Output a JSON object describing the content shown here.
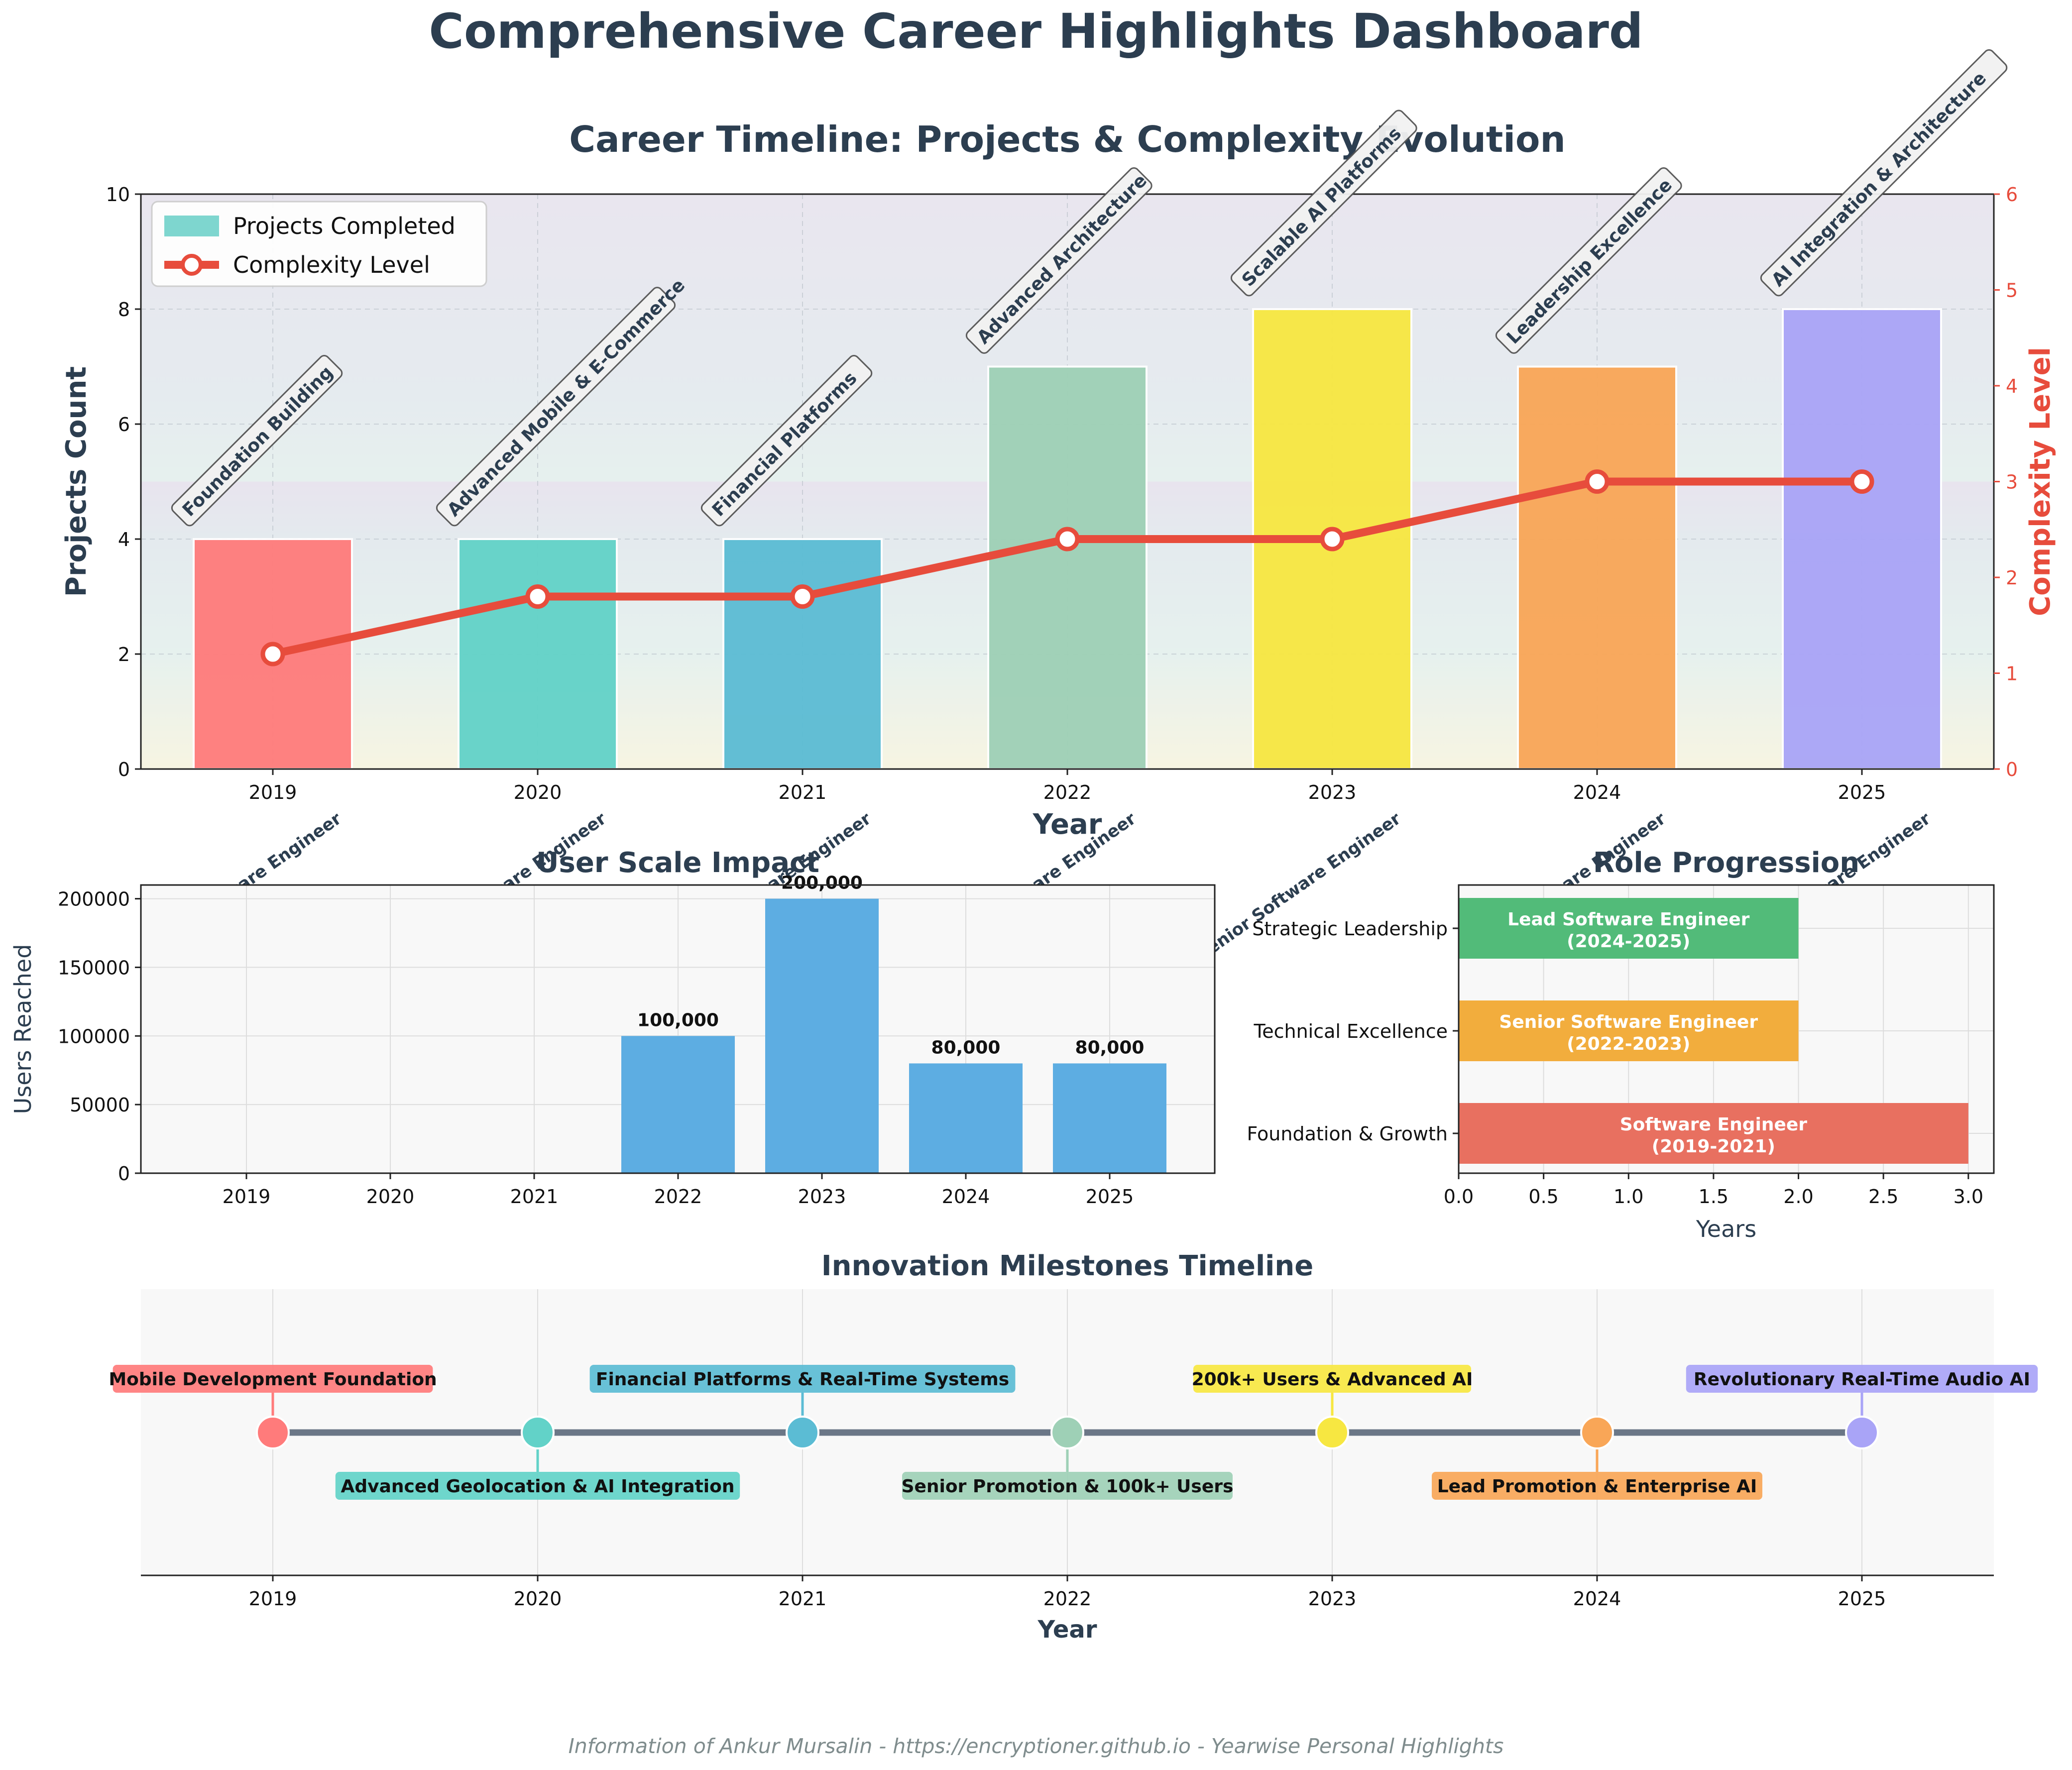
{
  "dashboard": {
    "title": "Comprehensive Career Highlights Dashboard",
    "footer": "Information of Ankur Mursalin - https://encryptioner.github.io - Yearwise Personal Highlights"
  },
  "colors": {
    "title": "#2c3e50",
    "complexity": "#e74c3c",
    "users": "#5dade2",
    "milestone_line": "#6b7787",
    "year_palette": [
      "#ff7b7b",
      "#62d2c8",
      "#5bbcd4",
      "#9ed0b6",
      "#f7e741",
      "#f9a657",
      "#a9a4f7"
    ],
    "roles": [
      "#e87060",
      "#f2ad3d",
      "#52bb79"
    ]
  },
  "chart_data": [
    {
      "id": "timeline",
      "type": "bar",
      "title": "Career Timeline: Projects & Complexity Evolution",
      "xlabel": "Year",
      "ylabel": "Projects Count",
      "y2label": "Complexity Level",
      "ylim": [
        0,
        10
      ],
      "y2lim": [
        0,
        6
      ],
      "grid": true,
      "legend": "top-left",
      "categories": [
        "2019",
        "2020",
        "2021",
        "2022",
        "2023",
        "2024",
        "2025"
      ],
      "series": [
        {
          "name": "Projects Completed",
          "type": "bar",
          "values": [
            4,
            4,
            4,
            7,
            8,
            7,
            8
          ]
        },
        {
          "name": "Complexity Level",
          "type": "line",
          "axis": "right",
          "values": [
            1.2,
            1.8,
            1.8,
            2.4,
            2.4,
            3.0,
            3.0
          ]
        }
      ],
      "annotations": [
        "Foundation Building",
        "Advanced Mobile & E-Commerce",
        "Financial Platforms",
        "Advanced Architecture",
        "Scalable AI Platforms",
        "Leadership Excellence",
        "AI Integration & Architecture"
      ],
      "role_labels": [
        "Software Engineer",
        "Software Engineer",
        "Software Engineer",
        "Senior Software Engineer",
        "Senior Software Engineer",
        "Lead Software Engineer",
        "Lead Software Engineer"
      ]
    },
    {
      "id": "users",
      "type": "bar",
      "title": "User Scale Impact",
      "ylabel": "Users Reached",
      "ylim": [
        0,
        210000
      ],
      "yticks": [
        0,
        50000,
        100000,
        150000,
        200000
      ],
      "grid": true,
      "categories": [
        "2019",
        "2020",
        "2021",
        "2022",
        "2023",
        "2024",
        "2025"
      ],
      "values": [
        0,
        0,
        0,
        100000,
        200000,
        80000,
        80000
      ],
      "data_labels": [
        "",
        "",
        "",
        "100,000",
        "200,000",
        "80,000",
        "80,000"
      ]
    },
    {
      "id": "roles",
      "type": "bar",
      "orientation": "horizontal",
      "title": "Role Progression",
      "xlabel": "Years",
      "xlim": [
        0,
        3.15
      ],
      "xticks": [
        "0.0",
        "0.5",
        "1.0",
        "1.5",
        "2.0",
        "2.5",
        "3.0"
      ],
      "grid": true,
      "categories": [
        "Foundation & Growth",
        "Technical Excellence",
        "Strategic Leadership"
      ],
      "values": [
        3,
        2,
        2
      ],
      "bar_labels": [
        [
          "Software Engineer",
          "(2019-2021)"
        ],
        [
          "Senior Software Engineer",
          "(2022-2023)"
        ],
        [
          "Lead Software Engineer",
          "(2024-2025)"
        ]
      ]
    },
    {
      "id": "milestones",
      "type": "scatter",
      "title": "Innovation Milestones Timeline",
      "xlabel": "Year",
      "categories": [
        "2019",
        "2020",
        "2021",
        "2022",
        "2023",
        "2024",
        "2025"
      ],
      "milestones": [
        "Mobile Development Foundation",
        "Advanced Geolocation & AI Integration",
        "Financial Platforms & Real-Time Systems",
        "Senior Promotion & 100k+ Users",
        "200k+ Users & Advanced AI",
        "Lead Promotion & Enterprise AI",
        "Revolutionary Real-Time Audio AI"
      ],
      "label_side": [
        "above",
        "below",
        "above",
        "below",
        "above",
        "below",
        "above"
      ]
    }
  ]
}
